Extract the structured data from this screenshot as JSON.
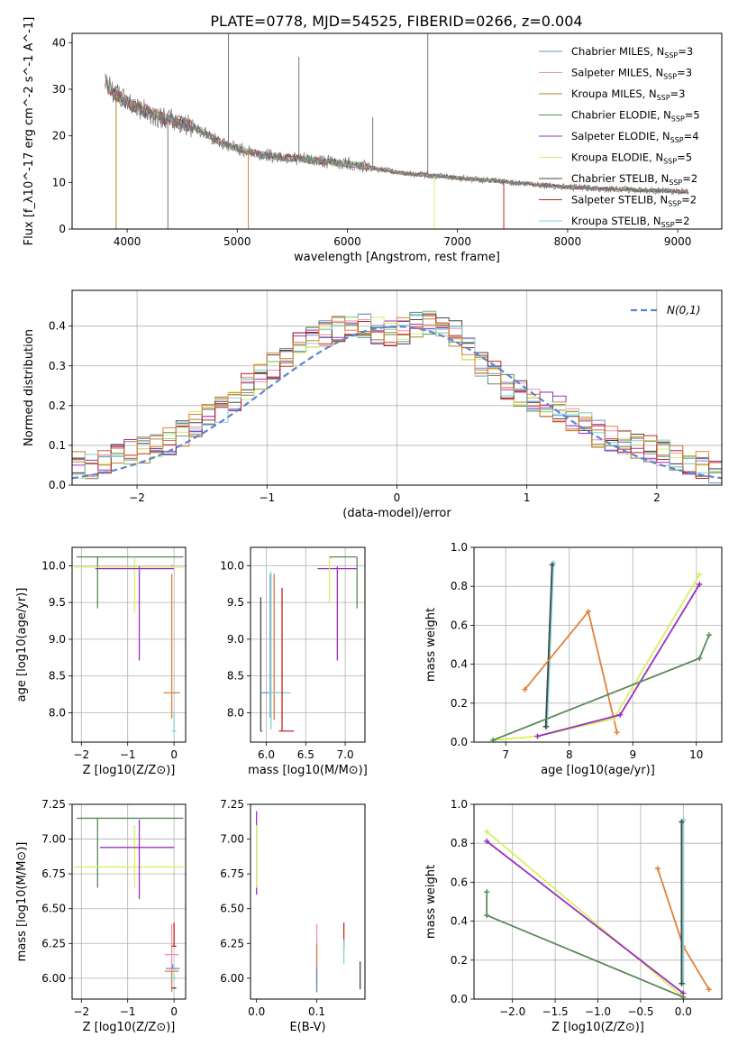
{
  "figure": {
    "title": "PLATE=0778, MJD=54525, FIBERID=0266, z=0.004"
  },
  "colors": {
    "chabrier_miles": "#6b8fd6",
    "salpeter_miles": "#f28fb0",
    "kroupa_miles": "#b0822a",
    "chabrier_elodie": "#5a8a5a",
    "salpeter_elodie": "#9b30c0",
    "kroupa_elodie": "#d8f060",
    "chabrier_stelib": "#444444",
    "salpeter_stelib": "#c0261e",
    "kroupa_stelib": "#7fd4d4",
    "orange_model": "#e0803a",
    "gaussian": "#5b86d4",
    "grid": "#b0b0b0",
    "spectrum": "#777777"
  },
  "chart_data": [
    {
      "type": "line",
      "id": "spectrum",
      "title": "PLATE=0778, MJD=54525, FIBERID=0266, z=0.004",
      "xlabel": "wavelength [Angstrom, rest frame]",
      "ylabel": "Flux [f_λ10^-17 erg cm^-2 s^-1 A^-1]",
      "xlim": [
        3500,
        9400
      ],
      "ylim": [
        0,
        42
      ],
      "xticks": [
        "4000",
        "5000",
        "6000",
        "7000",
        "8000",
        "9000"
      ],
      "yticks": [
        "0",
        "10",
        "20",
        "30",
        "40"
      ],
      "continuum": {
        "x": [
          3800,
          3850,
          3950,
          4100,
          4300,
          4600,
          4900,
          5200,
          5600,
          6000,
          6500,
          7000,
          7500,
          8000,
          8500,
          9100
        ],
        "y": [
          32,
          30,
          28,
          26,
          24,
          22,
          18,
          16,
          15,
          14,
          12,
          11,
          10,
          9,
          8.5,
          8
        ]
      },
      "legend": [
        {
          "label": "Chabrier MILES, N_SSP=3",
          "color": "#6b8fd6"
        },
        {
          "label": "Salpeter MILES, N_SSP=3",
          "color": "#f28fb0"
        },
        {
          "label": "Kroupa MILES, N_SSP=3",
          "color": "#b0822a"
        },
        {
          "label": "Chabrier ELODIE, N_SSP=5",
          "color": "#5a8a5a"
        },
        {
          "label": "Salpeter ELODIE, N_SSP=4",
          "color": "#9b30c0"
        },
        {
          "label": "Kroupa ELODIE, N_SSP=5",
          "color": "#d8f060"
        },
        {
          "label": "Chabrier STELIB, N_SSP=2",
          "color": "#444444"
        },
        {
          "label": "Salpeter STELIB, N_SSP=2",
          "color": "#c0261e"
        },
        {
          "label": "Kroupa STELIB, N_SSP=2",
          "color": "#7fd4d4"
        }
      ],
      "legend_position": "top-right",
      "grid": false
    },
    {
      "type": "histogram",
      "id": "residuals",
      "xlabel": "(data-model)/error",
      "ylabel": "Normed distribution",
      "xlim": [
        -2.5,
        2.5
      ],
      "ylim": [
        0,
        0.49
      ],
      "xticks": [
        "−2",
        "−1",
        "0",
        "1",
        "2"
      ],
      "yticks": [
        "0.0",
        "0.1",
        "0.2",
        "0.3",
        "0.4"
      ],
      "bin_width": 0.1,
      "bin_start": -2.5,
      "base_values": [
        0.05,
        0.05,
        0.06,
        0.07,
        0.08,
        0.09,
        0.1,
        0.11,
        0.13,
        0.15,
        0.17,
        0.19,
        0.22,
        0.25,
        0.27,
        0.3,
        0.32,
        0.35,
        0.37,
        0.38,
        0.39,
        0.4,
        0.4,
        0.39,
        0.38,
        0.39,
        0.4,
        0.41,
        0.4,
        0.38,
        0.34,
        0.3,
        0.28,
        0.25,
        0.23,
        0.21,
        0.2,
        0.19,
        0.17,
        0.15,
        0.13,
        0.12,
        0.11,
        0.1,
        0.09,
        0.08,
        0.07,
        0.06,
        0.05,
        0.04
      ],
      "legend": [
        {
          "label": "N(0,1)",
          "color": "#5b86d4",
          "style": "dashed"
        }
      ],
      "legend_position": "top-right",
      "grid": true
    },
    {
      "type": "errorbar",
      "id": "age-vs-Z",
      "xlabel": "Z [log10(Z/Z⊙)]",
      "ylabel": "age  [log10(age/yr)]",
      "xlim": [
        -2.2,
        0.25
      ],
      "ylim": [
        7.6,
        10.25
      ],
      "xticks": [
        "−2",
        "−1",
        "0"
      ],
      "yticks": [
        "8.0",
        "8.5",
        "9.0",
        "9.5",
        "10.0"
      ],
      "points": [
        {
          "x": -1.65,
          "y": 10.12,
          "xerr": [
            0.45,
            1.85
          ],
          "yerr": [
            0.7,
            0
          ],
          "color": "#5a8a5a"
        },
        {
          "x": -0.85,
          "y": 9.98,
          "xerr": [
            1.3,
            1.05
          ],
          "yerr": [
            0.62,
            0.12
          ],
          "color": "#d8f060"
        },
        {
          "x": -0.75,
          "y": 9.96,
          "xerr": [
            0.95,
            0.75
          ],
          "yerr": [
            1.25,
            0.03
          ],
          "color": "#9b30c0"
        },
        {
          "x": -0.05,
          "y": 8.27,
          "xerr": [
            0.18,
            0.18
          ],
          "yerr": [
            0.35,
            1.62
          ],
          "color": "#e0803a"
        },
        {
          "x": 0.0,
          "y": 7.75,
          "xerr": [
            0.05,
            0.05
          ],
          "yerr": [
            0.0,
            0.25
          ],
          "color": "#7fd4d4"
        },
        {
          "x": -0.05,
          "y": 9.99,
          "xerr": [
            0.0,
            0.0
          ],
          "yerr": [
            0.0,
            0.02
          ],
          "color": "#6b8fd6"
        }
      ],
      "grid": true
    },
    {
      "type": "errorbar",
      "id": "age-vs-mass",
      "xlabel": "mass [log10(M/M⊙)]",
      "ylabel": "",
      "xlim": [
        5.8,
        7.25
      ],
      "ylim": [
        7.6,
        10.25
      ],
      "xticks": [
        "6.0",
        "6.5",
        "7.0"
      ],
      "yticks": [
        "8.0",
        "8.5",
        "9.0",
        "9.5",
        "10.0"
      ],
      "points": [
        {
          "x": 5.93,
          "y": 7.75,
          "xerr": [
            0,
            0.02
          ],
          "yerr": [
            0,
            1.82
          ],
          "color": "#444444"
        },
        {
          "x": 6.05,
          "y": 8.27,
          "xerr": [
            0.12,
            0.2
          ],
          "yerr": [
            0.34,
            1.62
          ],
          "color": "#6b8fd6"
        },
        {
          "x": 6.1,
          "y": 8.27,
          "xerr": [
            0.0,
            0.0
          ],
          "yerr": [
            0.37,
            1.62
          ],
          "color": "#f28fb0"
        },
        {
          "x": 6.1,
          "y": 8.27,
          "xerr": [
            0.0,
            0.02
          ],
          "yerr": [
            0.37,
            1.62
          ],
          "color": "#e0803a"
        },
        {
          "x": 6.06,
          "y": 8.27,
          "xerr": [
            0.03,
            0.25
          ],
          "yerr": [
            0.5,
            1.65
          ],
          "color": "#7fd4d4"
        },
        {
          "x": 6.2,
          "y": 7.75,
          "xerr": [
            0.04,
            0.15
          ],
          "yerr": [
            0,
            1.95
          ],
          "color": "#c0261e"
        },
        {
          "x": 6.9,
          "y": 9.96,
          "xerr": [
            0.25,
            0.25
          ],
          "yerr": [
            1.25,
            0.03
          ],
          "color": "#9b30c0"
        },
        {
          "x": 6.8,
          "y": 10.12,
          "xerr": [
            0.0,
            0.15
          ],
          "yerr": [
            0.62,
            0.0
          ],
          "color": "#d8f060"
        },
        {
          "x": 7.15,
          "y": 10.12,
          "xerr": [
            0.35,
            0.0
          ],
          "yerr": [
            0.7,
            0.0
          ],
          "color": "#5a8a5a"
        }
      ],
      "grid": true
    },
    {
      "type": "line",
      "id": "mass-weight-vs-age",
      "xlabel": "age  [log10(age/yr)]",
      "ylabel": "mass weight",
      "xlim": [
        6.5,
        10.4
      ],
      "ylim": [
        0,
        1.0
      ],
      "xticks": [
        "7",
        "8",
        "9",
        "10"
      ],
      "yticks": [
        "0.0",
        "0.2",
        "0.4",
        "0.6",
        "0.8",
        "1.0"
      ],
      "series": [
        {
          "color": "#7fd4d4",
          "x": [
            7.65,
            7.75
          ],
          "y": [
            0.08,
            0.92
          ]
        },
        {
          "color": "#444444",
          "x": [
            7.63,
            7.73
          ],
          "y": [
            0.08,
            0.91
          ]
        },
        {
          "color": "#e0803a",
          "x": [
            7.3,
            8.3,
            8.75
          ],
          "y": [
            0.27,
            0.67,
            0.05
          ]
        },
        {
          "color": "#d8f060",
          "x": [
            6.8,
            7.5,
            8.7,
            10.05
          ],
          "y": [
            0.01,
            0.03,
            0.12,
            0.86
          ]
        },
        {
          "color": "#9b30c0",
          "x": [
            7.5,
            8.8,
            10.05
          ],
          "y": [
            0.03,
            0.14,
            0.81
          ]
        },
        {
          "color": "#5a8a5a",
          "x": [
            6.8,
            10.05,
            10.2
          ],
          "y": [
            0.01,
            0.43,
            0.55
          ]
        }
      ],
      "grid": true
    },
    {
      "type": "errorbar",
      "id": "mass-vs-Z",
      "xlabel": "Z [log10(Z/Z⊙)]",
      "ylabel": "mass [log10(M/M⊙)]",
      "xlim": [
        -2.2,
        0.25
      ],
      "ylim": [
        5.85,
        7.25
      ],
      "xticks": [
        "−2",
        "−1",
        "0"
      ],
      "yticks": [
        "6.00",
        "6.25",
        "6.50",
        "6.75",
        "7.00",
        "7.25"
      ],
      "points": [
        {
          "x": -1.65,
          "y": 7.15,
          "xerr": [
            0.45,
            1.85
          ],
          "yerr": [
            0.5,
            0
          ],
          "color": "#5a8a5a"
        },
        {
          "x": -0.85,
          "y": 6.8,
          "xerr": [
            1.3,
            1.05
          ],
          "yerr": [
            0.15,
            0.3
          ],
          "color": "#d8f060"
        },
        {
          "x": -0.75,
          "y": 6.94,
          "xerr": [
            0.85,
            0.75
          ],
          "yerr": [
            0.37,
            0.2
          ],
          "color": "#9b30c0"
        },
        {
          "x": -0.05,
          "y": 6.17,
          "xerr": [
            0.15,
            0.15
          ],
          "yerr": [
            0.2,
            0.22
          ],
          "color": "#f28fb0"
        },
        {
          "x": 0.0,
          "y": 6.23,
          "xerr": [
            0.05,
            0.05
          ],
          "yerr": [
            0.0,
            0.17
          ],
          "color": "#c0261e"
        },
        {
          "x": -0.05,
          "y": 6.05,
          "xerr": [
            0.15,
            0.15
          ],
          "yerr": [
            0.15,
            0.0
          ],
          "color": "#e0803a"
        },
        {
          "x": -0.03,
          "y": 6.07,
          "xerr": [
            0.15,
            0.15
          ],
          "yerr": [
            0.0,
            0.03
          ],
          "color": "#6b8fd6"
        },
        {
          "x": 0.0,
          "y": 6.0,
          "xerr": [
            0.1,
            0.05
          ],
          "yerr": [
            0.0,
            0.03
          ],
          "color": "#7fd4d4"
        },
        {
          "x": 0.0,
          "y": 5.93,
          "xerr": [
            0.05,
            0.05
          ],
          "yerr": [
            0.0,
            0.0
          ],
          "color": "#444444"
        }
      ],
      "grid": true
    },
    {
      "type": "errorbar",
      "id": "mass-vs-ebv",
      "xlabel": "E(B-V)",
      "ylabel": "",
      "xlim": [
        -0.01,
        0.18
      ],
      "ylim": [
        5.85,
        7.25
      ],
      "xticks": [
        "0.0",
        "0.1"
      ],
      "yticks": [
        "6.00",
        "6.25",
        "6.50",
        "6.75",
        "7.00",
        "7.25"
      ],
      "points": [
        {
          "x": 0.0,
          "y": 7.0,
          "xerr": [
            0,
            0
          ],
          "yerr": [
            0.4,
            0.2
          ],
          "color": "#9b30c0"
        },
        {
          "x": 0.0,
          "y": 6.8,
          "xerr": [
            0,
            0
          ],
          "yerr": [
            0.15,
            0.3
          ],
          "color": "#d8f060"
        },
        {
          "x": 0.1,
          "y": 6.17,
          "xerr": [
            0,
            0
          ],
          "yerr": [
            0.2,
            0.22
          ],
          "color": "#f28fb0"
        },
        {
          "x": 0.1,
          "y": 6.1,
          "xerr": [
            0,
            0
          ],
          "yerr": [
            0.2,
            0.15
          ],
          "color": "#e0803a"
        },
        {
          "x": 0.1,
          "y": 6.0,
          "xerr": [
            0,
            0
          ],
          "yerr": [
            0.1,
            0.08
          ],
          "color": "#6b8fd6"
        },
        {
          "x": 0.145,
          "y": 6.3,
          "xerr": [
            0,
            0
          ],
          "yerr": [
            0.1,
            0.1
          ],
          "color": "#c0261e"
        },
        {
          "x": 0.145,
          "y": 6.2,
          "xerr": [
            0,
            0
          ],
          "yerr": [
            0.1,
            0.08
          ],
          "color": "#7fd4d4"
        },
        {
          "x": 0.172,
          "y": 6.0,
          "xerr": [
            0,
            0
          ],
          "yerr": [
            0.08,
            0.12
          ],
          "color": "#444444"
        }
      ],
      "grid": false
    },
    {
      "type": "line",
      "id": "mass-weight-vs-Z",
      "xlabel": "Z [log10(Z/Z⊙)]",
      "ylabel": "mass weight",
      "xlim": [
        -2.45,
        0.45
      ],
      "ylim": [
        0,
        1.0
      ],
      "xticks": [
        "−2.0",
        "−1.5",
        "−1.0",
        "−0.5",
        "0.0"
      ],
      "yticks": [
        "0.0",
        "0.2",
        "0.4",
        "0.6",
        "0.8",
        "1.0"
      ],
      "series": [
        {
          "color": "#d8f060",
          "x": [
            -2.3,
            0.0
          ],
          "y": [
            0.86,
            0.01
          ]
        },
        {
          "color": "#9b30c0",
          "x": [
            -2.3,
            0.0
          ],
          "y": [
            0.81,
            0.03
          ]
        },
        {
          "color": "#5a8a5a",
          "x": [
            -2.3,
            -2.3,
            0.0
          ],
          "y": [
            0.55,
            0.43,
            0.01
          ]
        },
        {
          "color": "#e0803a",
          "x": [
            -0.3,
            0.0,
            0.3
          ],
          "y": [
            0.67,
            0.27,
            0.05
          ]
        },
        {
          "color": "#7fd4d4",
          "x": [
            0.0,
            0.0
          ],
          "y": [
            0.08,
            0.92
          ]
        },
        {
          "color": "#444444",
          "x": [
            -0.02,
            -0.02
          ],
          "y": [
            0.08,
            0.91
          ]
        }
      ],
      "grid": true
    }
  ]
}
